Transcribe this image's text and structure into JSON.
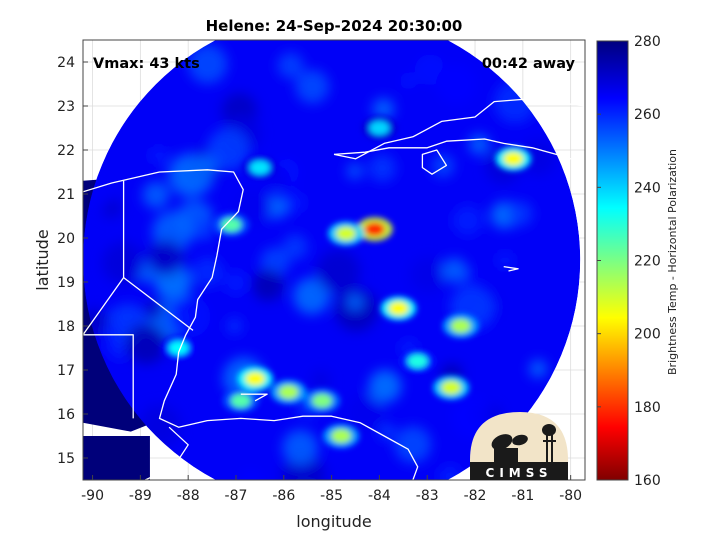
{
  "chart_data": {
    "type": "heatmap",
    "title": "Helene: 24-Sep-2024 20:30:00",
    "xlabel": "longitude",
    "ylabel": "latitude",
    "xlim": [
      -90.2,
      -79.7
    ],
    "ylim": [
      14.5,
      24.5
    ],
    "xticks": [
      -90,
      -89,
      -88,
      -87,
      -86,
      -85,
      -84,
      -83,
      -82,
      -81,
      -80
    ],
    "yticks": [
      15,
      16,
      17,
      18,
      19,
      20,
      21,
      22,
      23,
      24
    ],
    "grid": true,
    "annotations": {
      "left": "Vmax: 43 kts",
      "right": "00:42 away"
    },
    "colorbar": {
      "label": "Brightness Temp - Horizontal Polarization",
      "range": [
        160,
        280
      ],
      "ticks": [
        160,
        180,
        200,
        220,
        240,
        260,
        280
      ],
      "colormap": "jet"
    },
    "swath": {
      "center_lon": -85.0,
      "center_lat": 19.5,
      "radius_deg": 5.2
    },
    "hotspots": [
      {
        "lon": -84.1,
        "lat": 20.2,
        "value": 180
      },
      {
        "lon": -84.7,
        "lat": 20.1,
        "value": 210
      },
      {
        "lon": -83.6,
        "lat": 18.4,
        "value": 205
      },
      {
        "lon": -82.3,
        "lat": 18.0,
        "value": 215
      },
      {
        "lon": -86.6,
        "lat": 16.8,
        "value": 205
      },
      {
        "lon": -86.9,
        "lat": 16.3,
        "value": 225
      },
      {
        "lon": -85.9,
        "lat": 16.5,
        "value": 215
      },
      {
        "lon": -85.2,
        "lat": 16.3,
        "value": 220
      },
      {
        "lon": -84.8,
        "lat": 15.5,
        "value": 215
      },
      {
        "lon": -82.5,
        "lat": 16.6,
        "value": 210
      },
      {
        "lon": -81.2,
        "lat": 21.8,
        "value": 205
      },
      {
        "lon": -87.1,
        "lat": 20.3,
        "value": 225
      },
      {
        "lon": -88.2,
        "lat": 17.5,
        "value": 235
      },
      {
        "lon": -84.0,
        "lat": 22.5,
        "value": 240
      },
      {
        "lon": -86.5,
        "lat": 21.6,
        "value": 238
      },
      {
        "lon": -83.2,
        "lat": 17.2,
        "value": 232
      }
    ],
    "outside_color": "#00007a",
    "line_color": "#ffffff"
  },
  "logo": {
    "text": "CIMSS"
  }
}
